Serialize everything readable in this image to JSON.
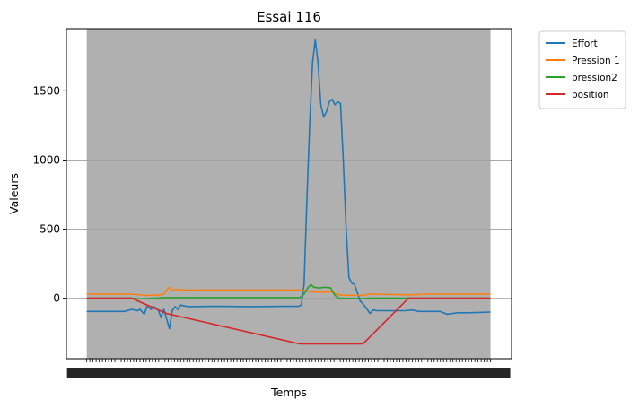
{
  "chart_data": {
    "type": "line",
    "title": "Essai 116",
    "xlabel": "Temps",
    "ylabel": "Valeurs",
    "xlim": [
      -13,
      622
    ],
    "ylim": [
      -437,
      1950
    ],
    "yticks": [
      0,
      500,
      1000,
      1500
    ],
    "grid": "horizontal",
    "legend_position": "outside-top-right",
    "x_tick_labels": "dense, overlapping (unreadable)",
    "shaded_region": {
      "x_start": 16,
      "x_end": 592,
      "color": "#b0b0b0"
    },
    "series": [
      {
        "name": "Effort",
        "color": "#1f77b4",
        "points": [
          [
            16,
            -95
          ],
          [
            70,
            -95
          ],
          [
            80,
            -80
          ],
          [
            88,
            -90
          ],
          [
            92,
            -80
          ],
          [
            98,
            -115
          ],
          [
            102,
            -60
          ],
          [
            108,
            -80
          ],
          [
            112,
            -60
          ],
          [
            118,
            -85
          ],
          [
            122,
            -140
          ],
          [
            126,
            -80
          ],
          [
            130,
            -150
          ],
          [
            134,
            -220
          ],
          [
            138,
            -90
          ],
          [
            142,
            -60
          ],
          [
            146,
            -80
          ],
          [
            150,
            -50
          ],
          [
            160,
            -60
          ],
          [
            200,
            -58
          ],
          [
            250,
            -60
          ],
          [
            300,
            -58
          ],
          [
            318,
            -58
          ],
          [
            322,
            -50
          ],
          [
            326,
            100
          ],
          [
            330,
            700
          ],
          [
            334,
            1250
          ],
          [
            338,
            1700
          ],
          [
            342,
            1870
          ],
          [
            346,
            1700
          ],
          [
            350,
            1400
          ],
          [
            354,
            1310
          ],
          [
            358,
            1350
          ],
          [
            362,
            1420
          ],
          [
            366,
            1440
          ],
          [
            370,
            1400
          ],
          [
            374,
            1420
          ],
          [
            378,
            1410
          ],
          [
            382,
            1000
          ],
          [
            386,
            500
          ],
          [
            390,
            150
          ],
          [
            394,
            110
          ],
          [
            398,
            100
          ],
          [
            402,
            40
          ],
          [
            406,
            -20
          ],
          [
            410,
            -40
          ],
          [
            416,
            -80
          ],
          [
            420,
            -110
          ],
          [
            424,
            -85
          ],
          [
            430,
            -90
          ],
          [
            470,
            -90
          ],
          [
            480,
            -85
          ],
          [
            490,
            -95
          ],
          [
            520,
            -95
          ],
          [
            530,
            -115
          ],
          [
            545,
            -105
          ],
          [
            560,
            -105
          ],
          [
            592,
            -100
          ]
        ]
      },
      {
        "name": "Pression 1",
        "color": "#ff7f0e",
        "points": [
          [
            16,
            30
          ],
          [
            80,
            30
          ],
          [
            100,
            20
          ],
          [
            120,
            25
          ],
          [
            126,
            30
          ],
          [
            130,
            60
          ],
          [
            134,
            80
          ],
          [
            138,
            55
          ],
          [
            142,
            65
          ],
          [
            150,
            60
          ],
          [
            320,
            60
          ],
          [
            330,
            55
          ],
          [
            336,
            45
          ],
          [
            350,
            45
          ],
          [
            365,
            45
          ],
          [
            372,
            30
          ],
          [
            380,
            22
          ],
          [
            410,
            20
          ],
          [
            418,
            30
          ],
          [
            480,
            25
          ],
          [
            500,
            30
          ],
          [
            592,
            30
          ]
        ]
      },
      {
        "name": "pression2",
        "color": "#2ca02c",
        "points": [
          [
            16,
            0
          ],
          [
            80,
            0
          ],
          [
            90,
            -5
          ],
          [
            100,
            -3
          ],
          [
            130,
            5
          ],
          [
            320,
            5
          ],
          [
            326,
            30
          ],
          [
            332,
            80
          ],
          [
            336,
            100
          ],
          [
            340,
            80
          ],
          [
            348,
            75
          ],
          [
            356,
            80
          ],
          [
            364,
            75
          ],
          [
            370,
            20
          ],
          [
            376,
            0
          ],
          [
            410,
            -3
          ],
          [
            420,
            0
          ],
          [
            592,
            0
          ]
        ]
      },
      {
        "name": "position",
        "color": "#d62728",
        "points": [
          [
            16,
            0
          ],
          [
            80,
            0
          ],
          [
            130,
            -110
          ],
          [
            320,
            -330
          ],
          [
            410,
            -330
          ],
          [
            475,
            0
          ],
          [
            592,
            0
          ]
        ]
      }
    ]
  }
}
